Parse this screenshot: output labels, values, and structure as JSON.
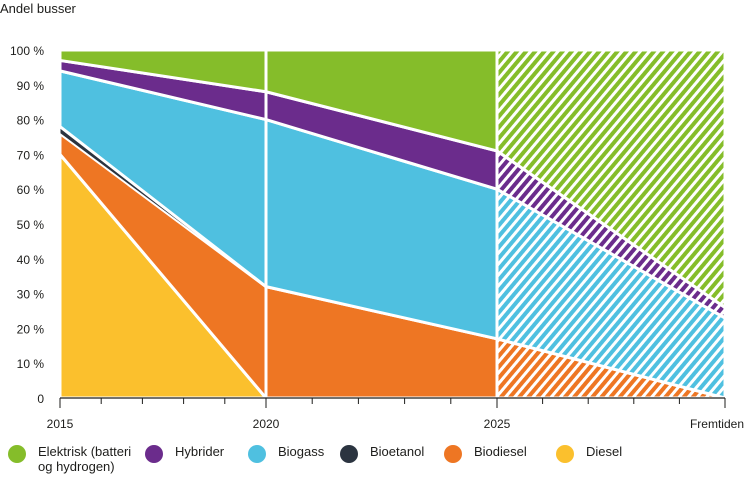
{
  "chart_data": {
    "type": "area",
    "stacked": true,
    "ylabel": "Andel busser",
    "x_labels": [
      "2015",
      "2020",
      "2025",
      "Fremtiden"
    ],
    "y_ticks": [
      "0",
      "10 %",
      "20 %",
      "30 %",
      "40 %",
      "50 %",
      "60 %",
      "70 %",
      "80 %",
      "90 %",
      "100 %"
    ],
    "ylim": [
      0,
      100
    ],
    "projected_segment": "2025 – Fremtiden (hatched)",
    "series": [
      {
        "name": "Diesel",
        "color": "#fbc02d",
        "values": [
          70,
          0,
          0,
          0
        ]
      },
      {
        "name": "Biodiesel",
        "color": "#ee7623",
        "values": [
          6,
          32,
          17,
          0
        ]
      },
      {
        "name": "Bioetanol",
        "color": "#2b3440",
        "values": [
          2,
          0,
          0,
          0
        ]
      },
      {
        "name": "Biogass",
        "color": "#4fc0e0",
        "values": [
          16,
          48,
          43,
          23
        ]
      },
      {
        "name": "Hybrider",
        "color": "#6b2c8c",
        "values": [
          3,
          8,
          11,
          3
        ]
      },
      {
        "name": "Elektrisk (batteri og hydrogen)",
        "color": "#85bd2a",
        "values": [
          3,
          12,
          29,
          74
        ]
      }
    ]
  },
  "legend": [
    {
      "label": "Elektrisk (batteri og hydrogen)",
      "color": "#85bd2a"
    },
    {
      "label": "Hybrider",
      "color": "#6b2c8c"
    },
    {
      "label": "Biogass",
      "color": "#4fc0e0"
    },
    {
      "label": "Bioetanol",
      "color": "#2b3440"
    },
    {
      "label": "Biodiesel",
      "color": "#ee7623"
    },
    {
      "label": "Diesel",
      "color": "#fbc02d"
    }
  ]
}
